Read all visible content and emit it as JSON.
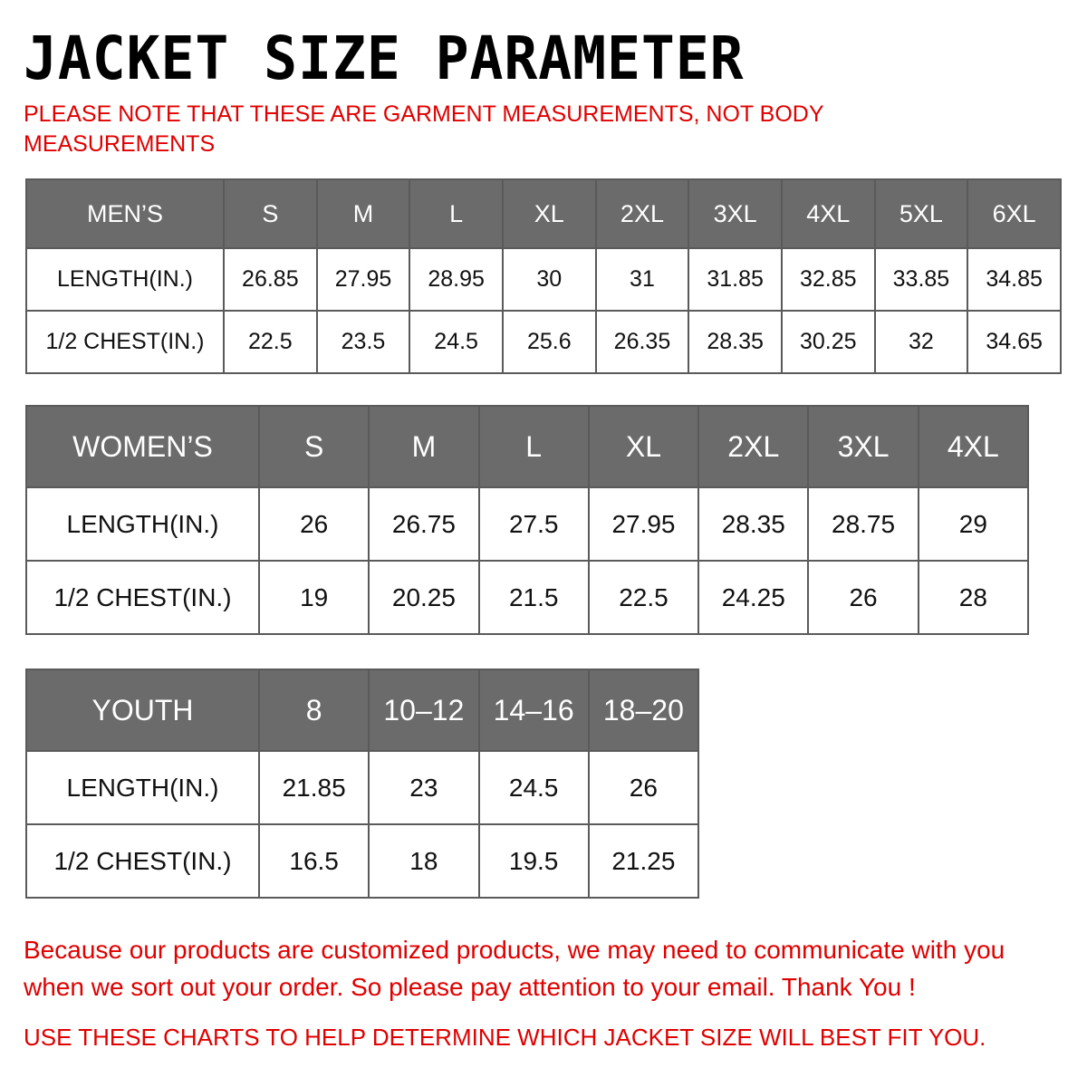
{
  "title": "JACKET  SIZE  PARAMETER",
  "note": "PLEASE NOTE THAT THESE ARE GARMENT MEASUREMENTS, NOT BODY MEASUREMENTS",
  "colors": {
    "header_bg": "#6b6b6b",
    "red_text": "#e00000"
  },
  "tables": {
    "men": {
      "header": [
        "MEN’S",
        "S",
        "M",
        "L",
        "XL",
        "2XL",
        "3XL",
        "4XL",
        "5XL",
        "6XL"
      ],
      "rows": [
        [
          "LENGTH(IN.)",
          "26.85",
          "27.95",
          "28.95",
          "30",
          "31",
          "31.85",
          "32.85",
          "33.85",
          "34.85"
        ],
        [
          "1/2 CHEST(IN.)",
          "22.5",
          "23.5",
          "24.5",
          "25.6",
          "26.35",
          "28.35",
          "30.25",
          "32",
          "34.65"
        ]
      ]
    },
    "women": {
      "header": [
        "WOMEN’S",
        "S",
        "M",
        "L",
        "XL",
        "2XL",
        "3XL",
        "4XL"
      ],
      "rows": [
        [
          "LENGTH(IN.)",
          "26",
          "26.75",
          "27.5",
          "27.95",
          "28.35",
          "28.75",
          "29"
        ],
        [
          "1/2 CHEST(IN.)",
          "19",
          "20.25",
          "21.5",
          "22.5",
          "24.25",
          "26",
          "28"
        ]
      ]
    },
    "youth": {
      "header": [
        "YOUTH",
        "8",
        "10–12",
        "14–16",
        "18–20"
      ],
      "rows": [
        [
          "LENGTH(IN.)",
          "21.85",
          "23",
          "24.5",
          "26"
        ],
        [
          "1/2 CHEST(IN.)",
          "16.5",
          "18",
          "19.5",
          "21.25"
        ]
      ]
    }
  },
  "footer": {
    "message": "Because our products are customized products, we may need to communicate with you when we sort out your order. So please pay attention to your email. Thank You !",
    "tip": "USE THESE CHARTS TO HELP DETERMINE WHICH JACKET SIZE WILL BEST FIT YOU."
  }
}
